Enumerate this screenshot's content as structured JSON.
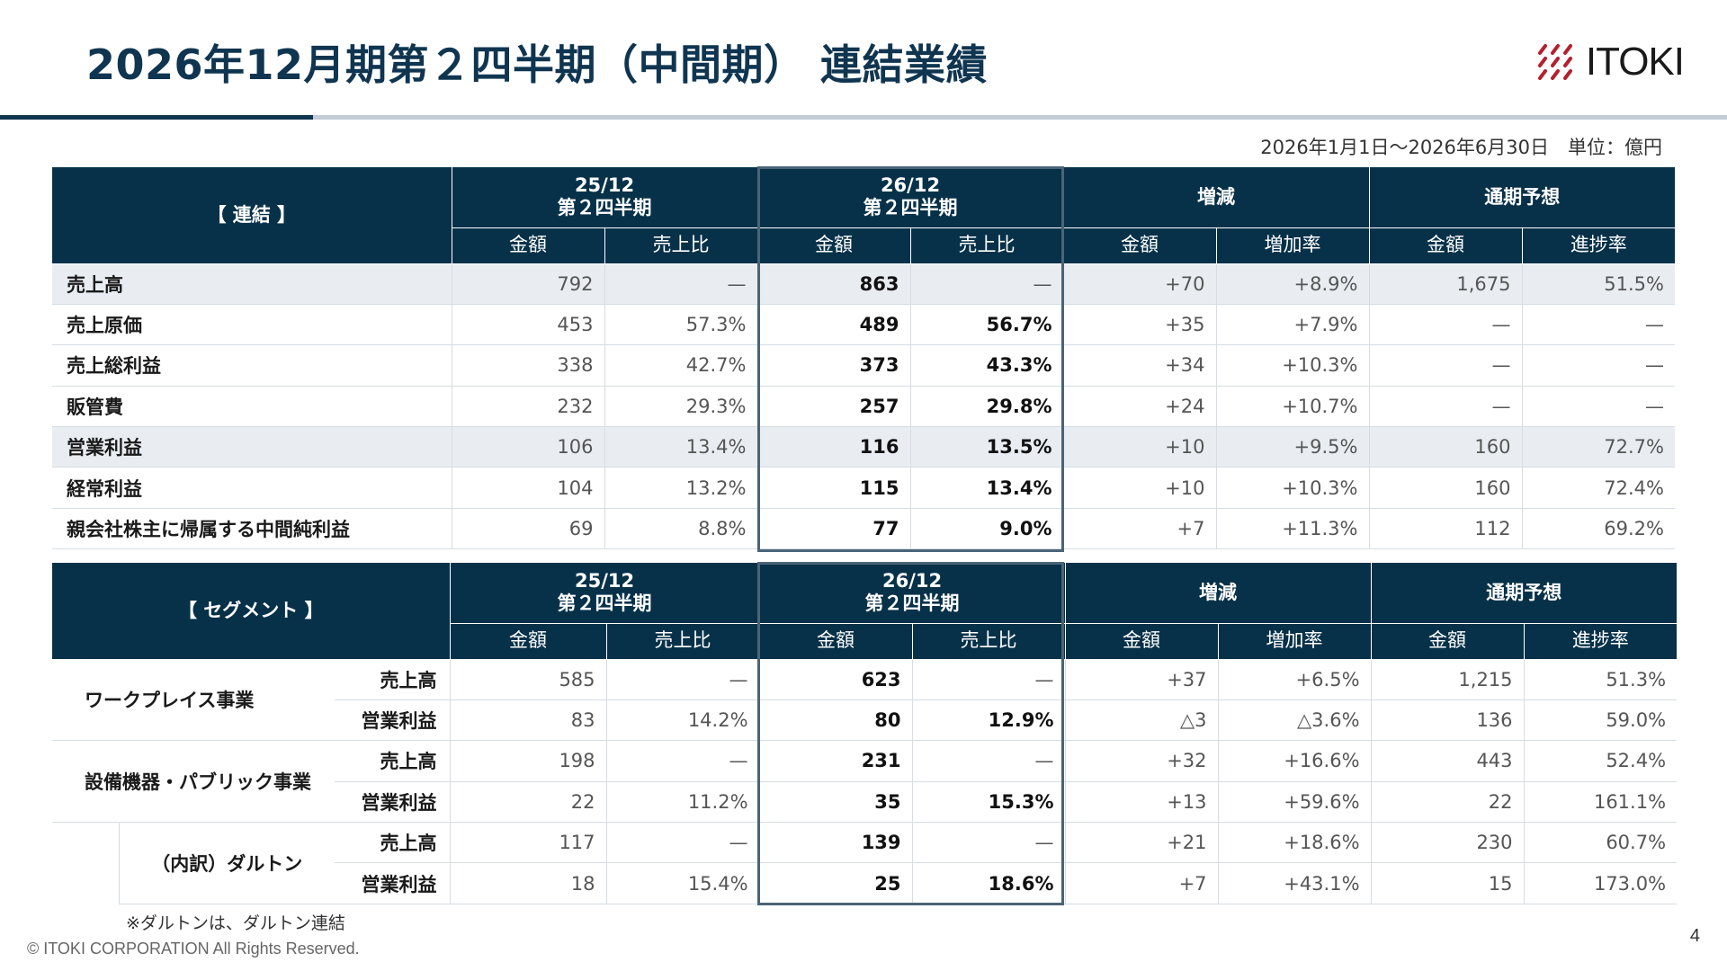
{
  "header": {
    "title": "2026年12月期第２四半期（中間期） 連結業績",
    "logo_text": "ITOKI",
    "period": "2026年1月1日～2026年6月30日　単位：億円"
  },
  "colors": {
    "header_bg": "#073149",
    "title": "#0f3550",
    "logo_mark": "#b5202e",
    "shade": "#e9edf2"
  },
  "consolidated": {
    "label": "【 連結 】",
    "col_groups": [
      "25/12\n第２四半期",
      "26/12\n第２四半期",
      "増減",
      "通期予想"
    ],
    "sub_headers": [
      "金額",
      "売上比",
      "金額",
      "売上比",
      "金額",
      "増加率",
      "金額",
      "進捗率"
    ],
    "rows": [
      {
        "label": "売上高",
        "values": [
          "792",
          "—",
          "863",
          "—",
          "+70",
          "+8.9%",
          "1,675",
          "51.5%"
        ]
      },
      {
        "label": "売上原価",
        "values": [
          "453",
          "57.3%",
          "489",
          "56.7%",
          "+35",
          "+7.9%",
          "—",
          "—"
        ]
      },
      {
        "label": "売上総利益",
        "values": [
          "338",
          "42.7%",
          "373",
          "43.3%",
          "+34",
          "+10.3%",
          "—",
          "—"
        ]
      },
      {
        "label": "販管費",
        "values": [
          "232",
          "29.3%",
          "257",
          "29.8%",
          "+24",
          "+10.7%",
          "—",
          "—"
        ]
      },
      {
        "label": "営業利益",
        "values": [
          "106",
          "13.4%",
          "116",
          "13.5%",
          "+10",
          "+9.5%",
          "160",
          "72.7%"
        ]
      },
      {
        "label": "経常利益",
        "values": [
          "104",
          "13.2%",
          "115",
          "13.4%",
          "+10",
          "+10.3%",
          "160",
          "72.4%"
        ]
      },
      {
        "label": "親会社株主に帰属する中間純利益",
        "values": [
          "69",
          "8.8%",
          "77",
          "9.0%",
          "+7",
          "+11.3%",
          "112",
          "69.2%"
        ]
      }
    ]
  },
  "segment": {
    "label": "【 セグメント 】",
    "col_groups": [
      "25/12\n第２四半期",
      "26/12\n第２四半期",
      "増減",
      "通期予想"
    ],
    "sub_headers": [
      "金額",
      "売上比",
      "金額",
      "売上比",
      "金額",
      "増加率",
      "金額",
      "進捗率"
    ],
    "groups": [
      {
        "name": "ワークプレイス事業",
        "rows": [
          {
            "label": "売上高",
            "values": [
              "585",
              "—",
              "623",
              "—",
              "+37",
              "+6.5%",
              "1,215",
              "51.3%"
            ]
          },
          {
            "label": "営業利益",
            "values": [
              "83",
              "14.2%",
              "80",
              "12.9%",
              "△3",
              "△3.6%",
              "136",
              "59.0%"
            ]
          }
        ]
      },
      {
        "name": "設備機器・パブリック事業",
        "rows": [
          {
            "label": "売上高",
            "values": [
              "198",
              "—",
              "231",
              "—",
              "+32",
              "+16.6%",
              "443",
              "52.4%"
            ]
          },
          {
            "label": "営業利益",
            "values": [
              "22",
              "11.2%",
              "35",
              "15.3%",
              "+13",
              "+59.6%",
              "22",
              "161.1%"
            ]
          }
        ]
      },
      {
        "name": "（内訳）ダルトン",
        "rows": [
          {
            "label": "売上高",
            "values": [
              "117",
              "—",
              "139",
              "—",
              "+21",
              "+18.6%",
              "230",
              "60.7%"
            ]
          },
          {
            "label": "営業利益",
            "values": [
              "18",
              "15.4%",
              "25",
              "18.6%",
              "+7",
              "+43.1%",
              "15",
              "173.0%"
            ]
          }
        ]
      }
    ]
  },
  "footer": {
    "note": "※ダルトンは、ダルトン連結",
    "copyright": "© ITOKI CORPORATION All Rights Reserved.",
    "page": "4"
  }
}
